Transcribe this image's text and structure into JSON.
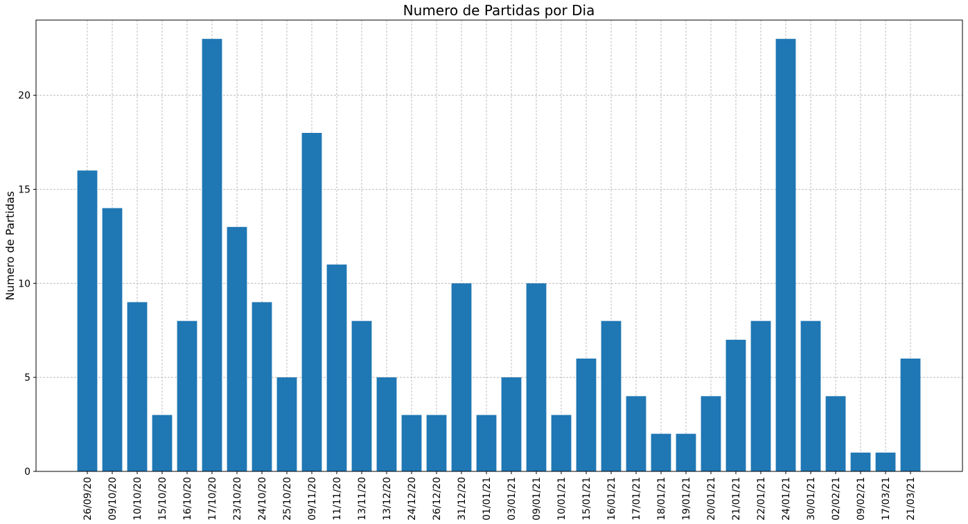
{
  "chart_data": {
    "type": "bar",
    "title": "Numero de Partidas por Dia",
    "xlabel": "",
    "ylabel": "Numero de Partidas",
    "ylim": [
      0,
      24
    ],
    "yticks": [
      0,
      5,
      10,
      15,
      20
    ],
    "grid": true,
    "bar_color": "#1f77b4",
    "categories": [
      "26/09/20",
      "09/10/20",
      "10/10/20",
      "15/10/20",
      "16/10/20",
      "17/10/20",
      "23/10/20",
      "24/10/20",
      "25/10/20",
      "09/11/20",
      "11/11/20",
      "13/11/20",
      "13/12/20",
      "24/12/20",
      "26/12/20",
      "31/12/20",
      "01/01/21",
      "03/01/21",
      "09/01/21",
      "10/01/21",
      "15/01/21",
      "16/01/21",
      "17/01/21",
      "18/01/21",
      "19/01/21",
      "20/01/21",
      "21/01/21",
      "22/01/21",
      "24/01/21",
      "30/01/21",
      "02/02/21",
      "09/02/21",
      "17/03/21",
      "21/03/21"
    ],
    "values": [
      16,
      14,
      9,
      3,
      8,
      23,
      13,
      9,
      5,
      18,
      11,
      8,
      5,
      3,
      3,
      10,
      3,
      5,
      10,
      3,
      6,
      8,
      4,
      2,
      2,
      4,
      7,
      8,
      23,
      8,
      4,
      1,
      1,
      6
    ]
  }
}
